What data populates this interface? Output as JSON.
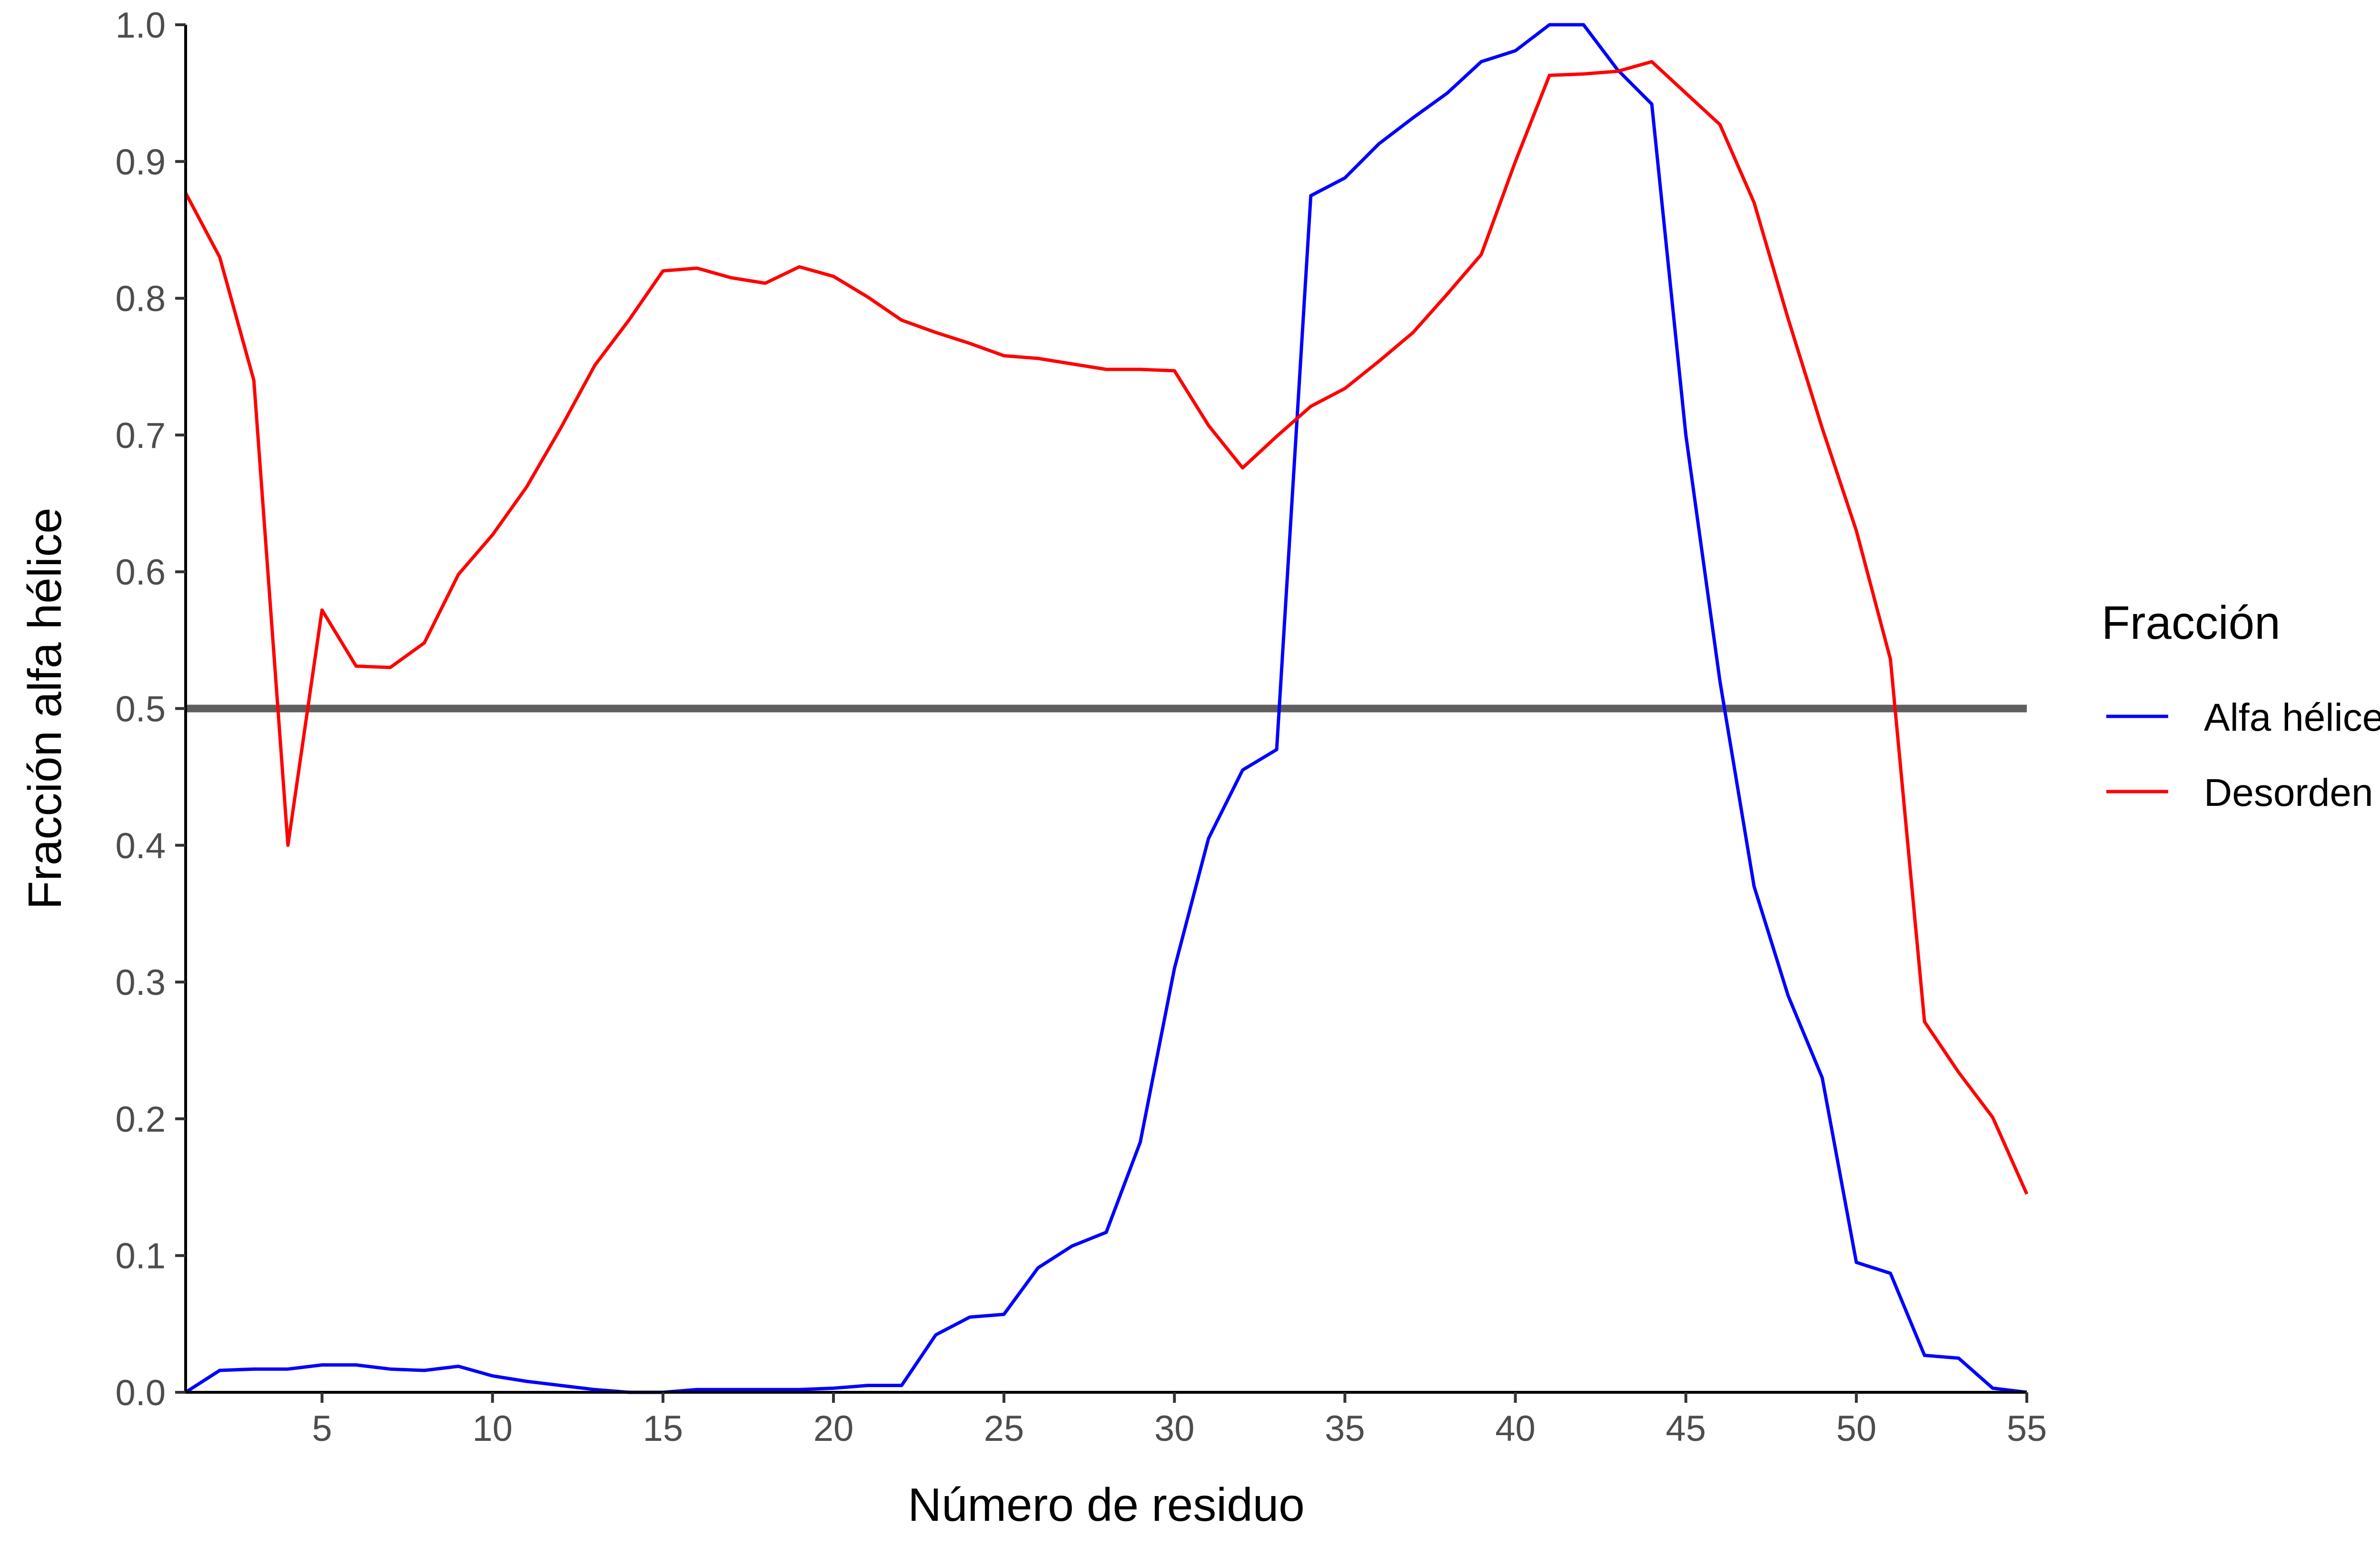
{
  "chart_data": {
    "type": "line",
    "xlabel": "Número de residuo",
    "ylabel": "Fracción alfa hélice",
    "xlim": [
      1,
      55
    ],
    "ylim": [
      0,
      1
    ],
    "xticks": [
      5,
      10,
      15,
      20,
      25,
      30,
      35,
      40,
      45,
      50,
      55
    ],
    "yticks": [
      0.0,
      0.1,
      0.2,
      0.3,
      0.4,
      0.5,
      0.6,
      0.7,
      0.8,
      0.9,
      1.0
    ],
    "ytick_labels": [
      "0.0",
      "0.1",
      "0.2",
      "0.3",
      "0.4",
      "0.5",
      "0.6",
      "0.7",
      "0.8",
      "0.9",
      "1.0"
    ],
    "grid": false,
    "hline": {
      "y": 0.5,
      "color": "#5f5f5f"
    },
    "legend": {
      "title": "Fracción",
      "position": "right"
    },
    "x": [
      1,
      2,
      3,
      4,
      5,
      6,
      7,
      8,
      9,
      10,
      11,
      12,
      13,
      14,
      15,
      16,
      17,
      18,
      19,
      20,
      21,
      22,
      23,
      24,
      25,
      26,
      27,
      28,
      29,
      30,
      31,
      32,
      33,
      34,
      35,
      36,
      37,
      38,
      39,
      40,
      41,
      42,
      43,
      44,
      45,
      46,
      47,
      48,
      49,
      50,
      51,
      52,
      53,
      54,
      55
    ],
    "series": [
      {
        "name": "Alfa hélice",
        "color": "#0000ff",
        "values": [
          0.0,
          0.016,
          0.017,
          0.017,
          0.02,
          0.02,
          0.017,
          0.016,
          0.019,
          0.012,
          0.008,
          0.005,
          0.002,
          0.0,
          0.0,
          0.002,
          0.002,
          0.002,
          0.002,
          0.003,
          0.005,
          0.005,
          0.042,
          0.055,
          0.057,
          0.091,
          0.107,
          0.117,
          0.183,
          0.31,
          0.405,
          0.455,
          0.47,
          0.875,
          0.888,
          0.913,
          0.932,
          0.95,
          0.973,
          0.981,
          1.0,
          1.0,
          0.967,
          0.942,
          0.7,
          0.52,
          0.37,
          0.29,
          0.23,
          0.095,
          0.087,
          0.027,
          0.025,
          0.003,
          0.0
        ]
      },
      {
        "name": "Desorden",
        "color": "#ff0000",
        "values": [
          0.877,
          0.83,
          0.74,
          0.4,
          0.572,
          0.531,
          0.53,
          0.548,
          0.598,
          0.627,
          0.662,
          0.705,
          0.751,
          0.784,
          0.82,
          0.822,
          0.815,
          0.811,
          0.823,
          0.816,
          0.801,
          0.784,
          0.775,
          0.767,
          0.758,
          0.756,
          0.752,
          0.748,
          0.748,
          0.747,
          0.707,
          0.676,
          0.699,
          0.721,
          0.734,
          0.754,
          0.775,
          0.803,
          0.832,
          0.9,
          0.963,
          0.964,
          0.966,
          0.973,
          0.95,
          0.927,
          0.87,
          0.785,
          0.705,
          0.63,
          0.536,
          0.271,
          0.234,
          0.201,
          0.145
        ]
      }
    ]
  }
}
